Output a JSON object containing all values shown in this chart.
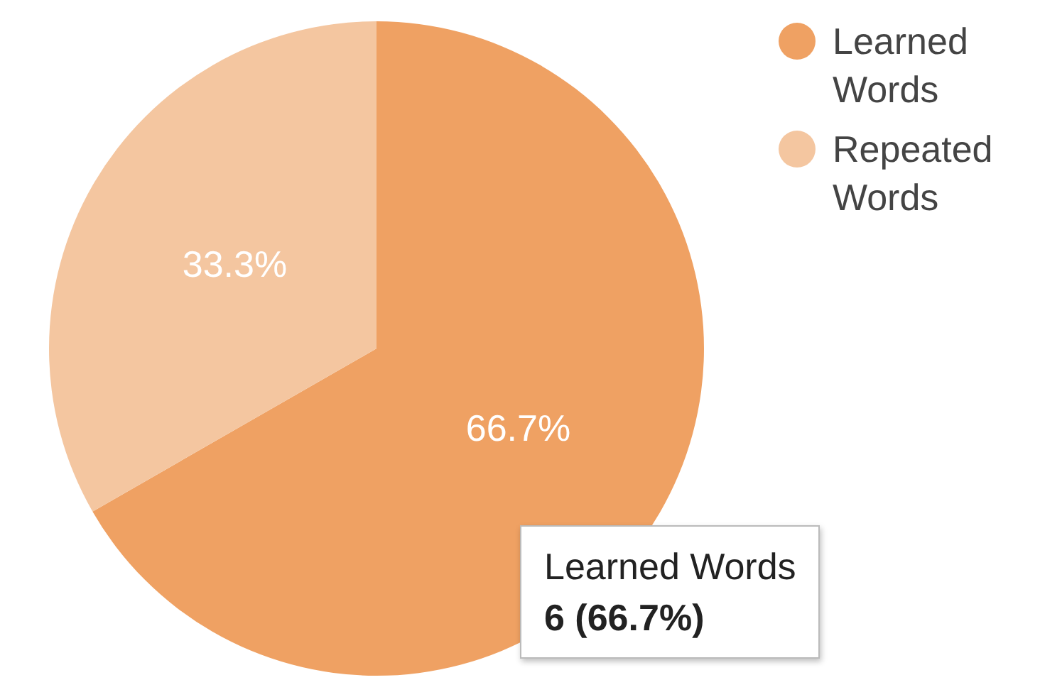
{
  "chart_data": {
    "type": "pie",
    "categories": [
      "Learned Words",
      "Repeated Words"
    ],
    "values": [
      66.7,
      33.3
    ],
    "colors": [
      "#efa163",
      "#f4c6a0"
    ],
    "value_labels": [
      "66.7%",
      "33.3%"
    ],
    "legend": "top right",
    "annotations": [
      "Learned Words",
      "6 (66.7%)"
    ]
  }
}
